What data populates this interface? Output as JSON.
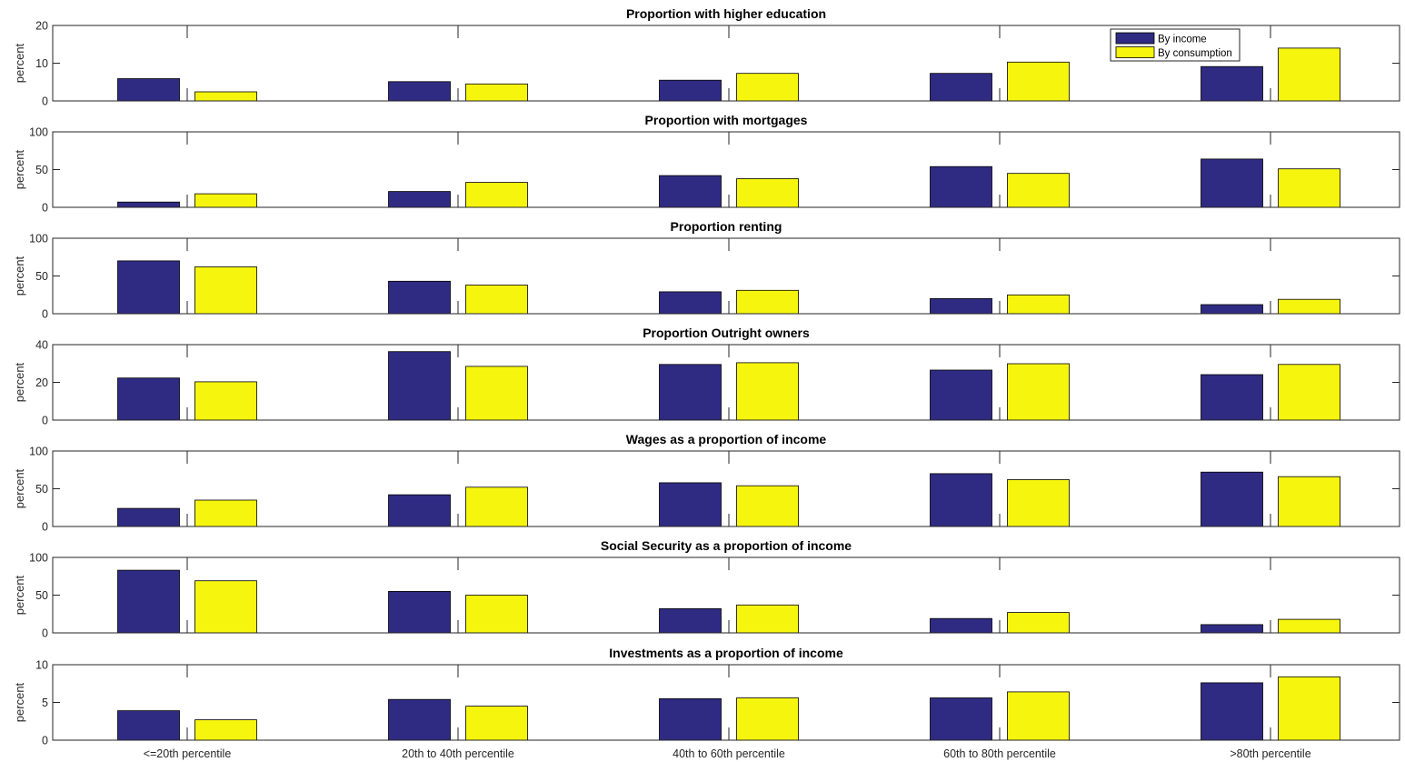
{
  "chart_data": [
    {
      "type": "bar",
      "title": "Proportion with higher education",
      "ylabel": "percent",
      "ylim": [
        0,
        20
      ],
      "yticks": [
        0,
        10,
        20
      ],
      "categories": [
        "<=20th percentile",
        "20th to 40th percentile",
        "40th to 60th percentile",
        "60th to 80th percentile",
        ">80th percentile"
      ],
      "series": [
        {
          "name": "By income",
          "values": [
            5.9,
            5.1,
            5.5,
            7.3,
            9.1
          ]
        },
        {
          "name": "By consumption",
          "values": [
            2.4,
            4.5,
            7.3,
            10.3,
            14.0
          ]
        }
      ],
      "legend": {
        "position": "top-right"
      }
    },
    {
      "type": "bar",
      "title": "Proportion with mortgages",
      "ylabel": "percent",
      "ylim": [
        0,
        100
      ],
      "yticks": [
        0,
        50,
        100
      ],
      "categories": [
        "<=20th percentile",
        "20th to 40th percentile",
        "40th to 60th percentile",
        "60th to 80th percentile",
        ">80th percentile"
      ],
      "series": [
        {
          "name": "By income",
          "values": [
            7,
            21,
            42,
            54,
            64
          ]
        },
        {
          "name": "By consumption",
          "values": [
            18,
            33,
            38,
            45,
            51
          ]
        }
      ]
    },
    {
      "type": "bar",
      "title": "Proportion renting",
      "ylabel": "percent",
      "ylim": [
        0,
        100
      ],
      "yticks": [
        0,
        50,
        100
      ],
      "categories": [
        "<=20th percentile",
        "20th to 40th percentile",
        "40th to 60th percentile",
        "60th to 80th percentile",
        ">80th percentile"
      ],
      "series": [
        {
          "name": "By income",
          "values": [
            70,
            43,
            29,
            20,
            12
          ]
        },
        {
          "name": "By consumption",
          "values": [
            62,
            38,
            31,
            25,
            19
          ]
        }
      ]
    },
    {
      "type": "bar",
      "title": "Proportion Outright owners",
      "ylabel": "percent",
      "ylim": [
        0,
        40
      ],
      "yticks": [
        0,
        20,
        40
      ],
      "categories": [
        "<=20th percentile",
        "20th to 40th percentile",
        "40th to 60th percentile",
        "60th to 80th percentile",
        ">80th percentile"
      ],
      "series": [
        {
          "name": "By income",
          "values": [
            22.3,
            36.3,
            29.5,
            26.5,
            24.1
          ]
        },
        {
          "name": "By consumption",
          "values": [
            20.3,
            28.5,
            30.4,
            29.9,
            29.5
          ]
        }
      ]
    },
    {
      "type": "bar",
      "title": "Wages as a proportion of income",
      "ylabel": "percent",
      "ylim": [
        0,
        100
      ],
      "yticks": [
        0,
        50,
        100
      ],
      "categories": [
        "<=20th percentile",
        "20th to 40th percentile",
        "40th to 60th percentile",
        "60th to 80th percentile",
        ">80th percentile"
      ],
      "series": [
        {
          "name": "By income",
          "values": [
            24,
            42,
            58,
            70,
            72
          ]
        },
        {
          "name": "By consumption",
          "values": [
            35,
            52,
            54,
            62,
            66
          ]
        }
      ]
    },
    {
      "type": "bar",
      "title": "Social Security as a proportion of income",
      "ylabel": "percent",
      "ylim": [
        0,
        100
      ],
      "yticks": [
        0,
        50,
        100
      ],
      "categories": [
        "<=20th percentile",
        "20th to 40th percentile",
        "40th to 60th percentile",
        "60th to 80th percentile",
        ">80th percentile"
      ],
      "series": [
        {
          "name": "By income",
          "values": [
            83,
            55,
            32,
            19,
            11
          ]
        },
        {
          "name": "By consumption",
          "values": [
            69,
            50,
            37,
            27,
            18
          ]
        }
      ]
    },
    {
      "type": "bar",
      "title": "Investments as a proportion of income",
      "ylabel": "percent",
      "ylim": [
        0,
        10
      ],
      "yticks": [
        0,
        5,
        10
      ],
      "categories": [
        "<=20th percentile",
        "20th to 40th percentile",
        "40th to 60th percentile",
        "60th to 80th percentile",
        ">80th percentile"
      ],
      "series": [
        {
          "name": "By income",
          "values": [
            3.9,
            5.4,
            5.5,
            5.6,
            7.6
          ]
        },
        {
          "name": "By consumption",
          "values": [
            2.7,
            4.5,
            5.6,
            6.4,
            8.4
          ]
        }
      ],
      "show_xticklabels": true
    }
  ],
  "colors": {
    "by_income": "#302b82",
    "by_consumption": "#f6f50e",
    "axes": "#262626",
    "text": "#262626"
  }
}
